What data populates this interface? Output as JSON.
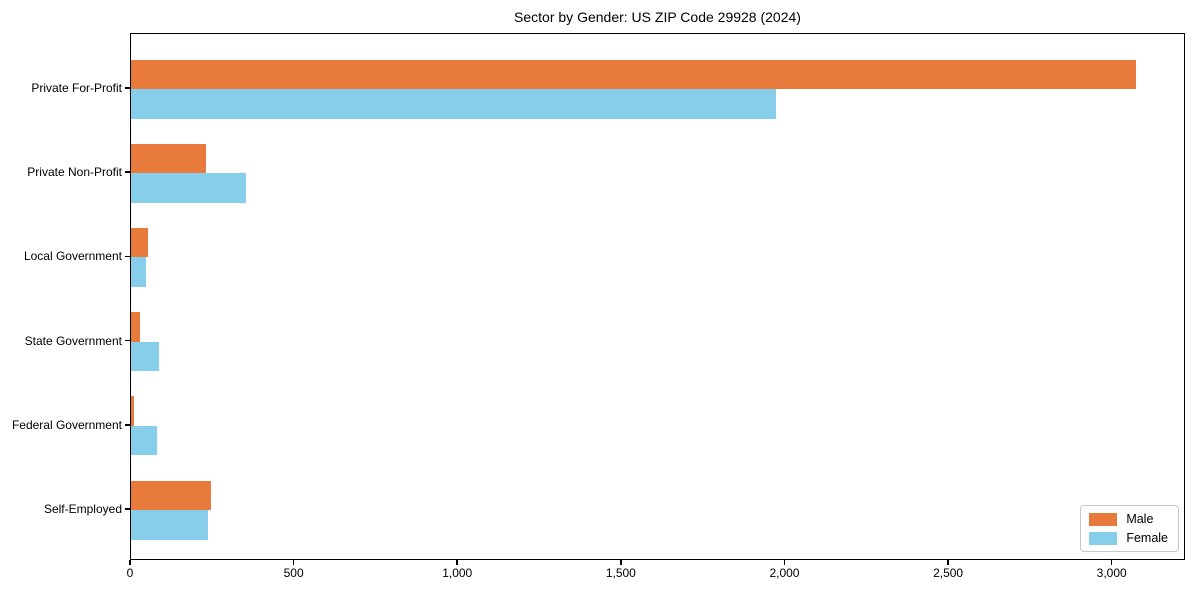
{
  "chart_data": {
    "type": "bar",
    "orientation": "horizontal",
    "title": "Sector by Gender: US ZIP Code 29928 (2024)",
    "categories": [
      "Private For-Profit",
      "Private Non-Profit",
      "Local Government",
      "State Government",
      "Federal Government",
      "Self-Employed"
    ],
    "series": [
      {
        "name": "Male",
        "color": "#E87A3B",
        "values": [
          3070,
          230,
          52,
          28,
          9,
          245
        ]
      },
      {
        "name": "Female",
        "color": "#87CEEB",
        "values": [
          1970,
          350,
          45,
          85,
          80,
          235
        ]
      }
    ],
    "xlabel": "",
    "ylabel": "",
    "xlim": [
      0,
      3224
    ],
    "x_ticks": [
      0,
      500,
      1000,
      1500,
      2000,
      2500,
      3000
    ],
    "x_tick_labels": [
      "0",
      "500",
      "1,000",
      "1,500",
      "2,000",
      "2,500",
      "3,000"
    ],
    "grid": false,
    "legend": {
      "position": "lower right",
      "border_color": "#c9c9c9",
      "entries": [
        "Male",
        "Female"
      ]
    },
    "colors": {
      "spine": "#000000",
      "background": "#ffffff"
    }
  }
}
